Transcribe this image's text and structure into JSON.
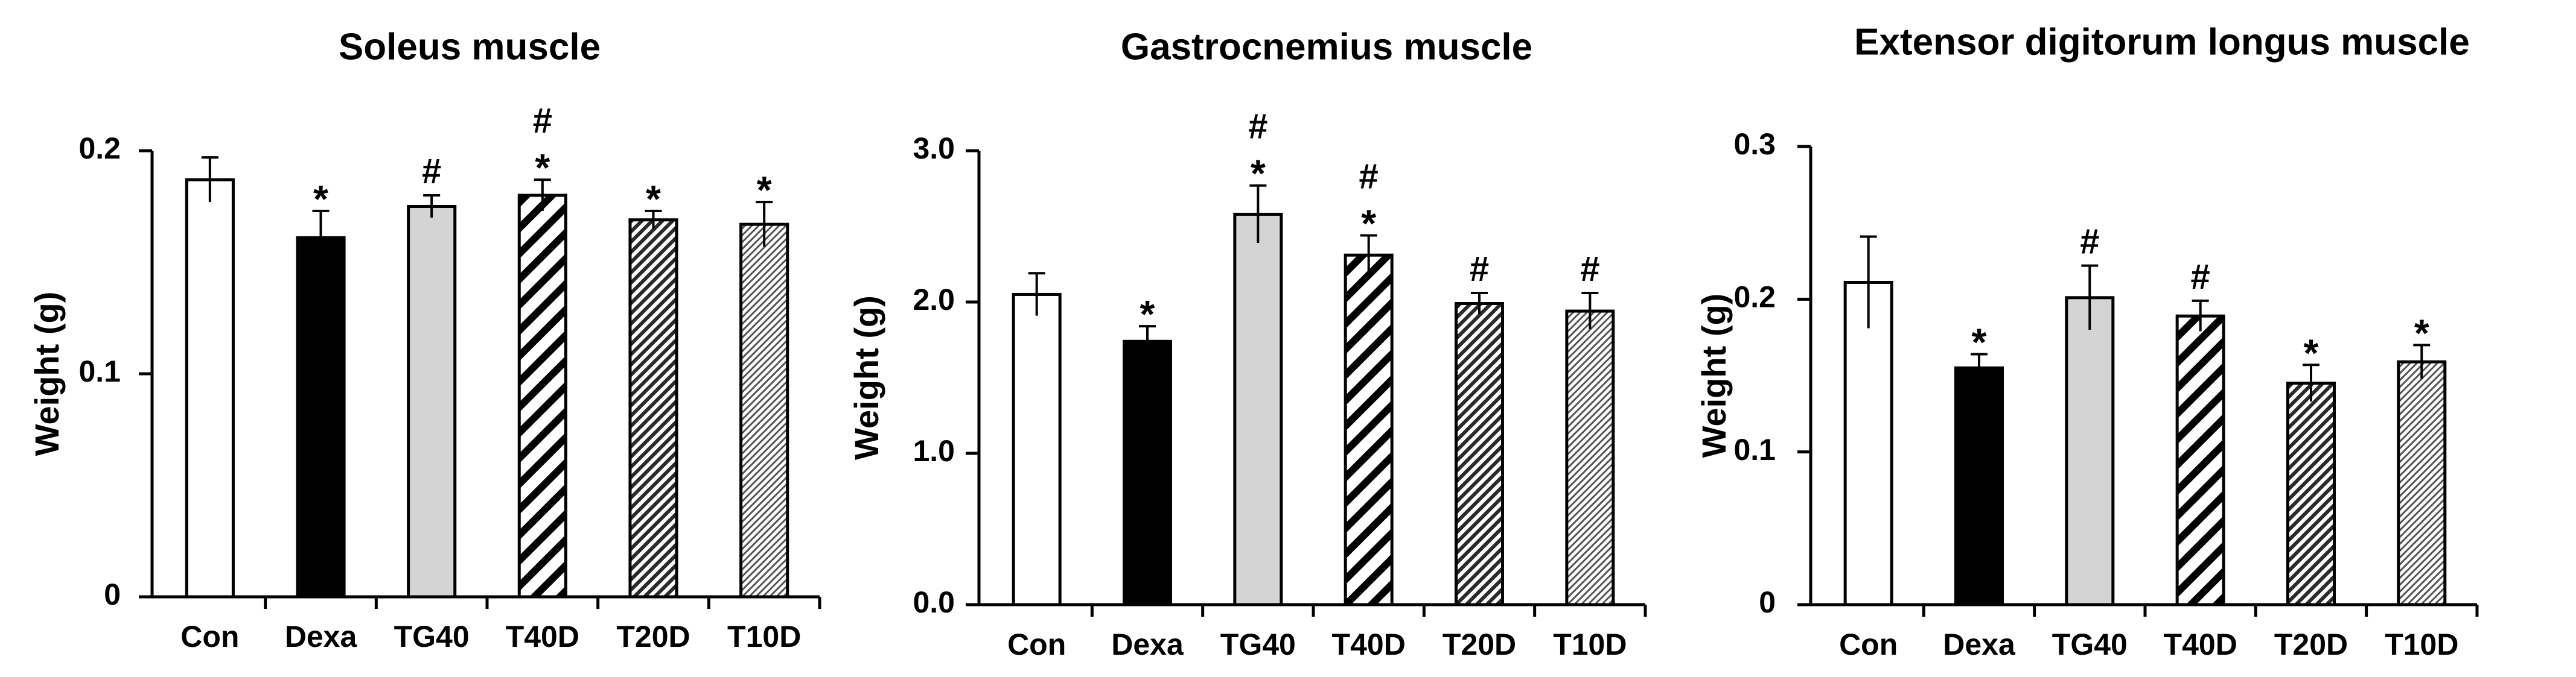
{
  "chart_data": [
    {
      "type": "bar",
      "title": "Soleus muscle",
      "xlabel": "",
      "ylabel": "Weight (g)",
      "ylim": [
        0,
        0.2
      ],
      "yticks": [
        0,
        0.1,
        0.2
      ],
      "ytick_labels": [
        "0",
        "0.1",
        "0.2"
      ],
      "categories": [
        "Con",
        "Dexa",
        "TG40",
        "T40D",
        "T20D",
        "T10D"
      ],
      "values": [
        0.187,
        0.161,
        0.175,
        0.18,
        0.169,
        0.167
      ],
      "errors": [
        0.01,
        0.012,
        0.005,
        0.007,
        0.004,
        0.01
      ],
      "annotations": [
        "",
        "*",
        "#",
        "#\n*",
        "*",
        "*"
      ]
    },
    {
      "type": "bar",
      "title": "Gastrocnemius muscle",
      "xlabel": "",
      "ylabel": "Weight (g)",
      "ylim": [
        0,
        3.0
      ],
      "yticks": [
        0,
        1,
        2,
        3
      ],
      "ytick_labels": [
        "0.0",
        "1.0",
        "2.0",
        "3.0"
      ],
      "categories": [
        "Con",
        "Dexa",
        "TG40",
        "T40D",
        "T20D",
        "T10D"
      ],
      "values": [
        2.05,
        1.74,
        2.58,
        2.31,
        1.99,
        1.94
      ],
      "errors": [
        0.14,
        0.1,
        0.19,
        0.13,
        0.07,
        0.12
      ],
      "annotations": [
        "",
        "*",
        "#\n*",
        "#\n*",
        "#",
        "#"
      ]
    },
    {
      "type": "bar",
      "title": "Extensor digitorum longus muscle",
      "xlabel": "",
      "ylabel": "Weight (g)",
      "ylim": [
        0,
        0.3
      ],
      "yticks": [
        0,
        0.1,
        0.2,
        0.3
      ],
      "ytick_labels": [
        "0",
        "0.1",
        "0.2",
        "0.3"
      ],
      "categories": [
        "Con",
        "Dexa",
        "TG40",
        "T40D",
        "T20D",
        "T10D"
      ],
      "values": [
        0.211,
        0.155,
        0.201,
        0.189,
        0.145,
        0.159
      ],
      "errors": [
        0.03,
        0.009,
        0.021,
        0.01,
        0.012,
        0.011
      ],
      "annotations": [
        "",
        "*",
        "#",
        "#",
        "*",
        "*"
      ]
    }
  ]
}
